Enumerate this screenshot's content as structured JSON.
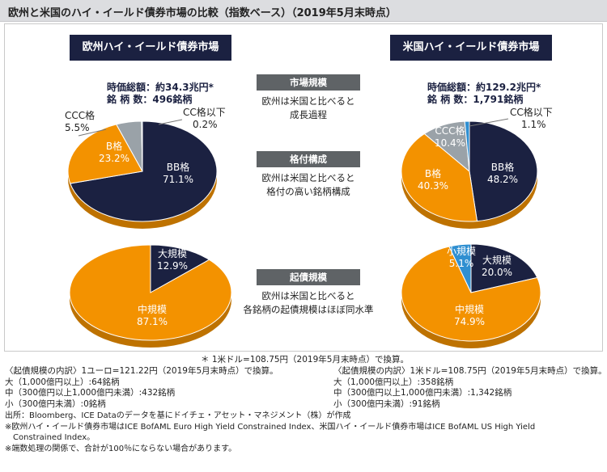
{
  "title": "欧州と米国のハイ・イールド債券市場の比較（指数ベース）（2019年5月末時点）",
  "europe": {
    "header": "欧州ハイ・イールド債券市場",
    "market_value": "時価総額：約34.3兆円*",
    "issue_count": "銘 柄 数：496銘柄"
  },
  "us": {
    "header": "米国ハイ・イールド債券市場",
    "market_value": "時価総額：約129.2兆円*",
    "issue_count": "銘 柄 数：1,791銘柄"
  },
  "middle": {
    "section1_label": "市場規模",
    "section1_line1": "欧州は米国と比べると",
    "section1_line2": "成長過程",
    "section2_label": "格付構成",
    "section2_line1": "欧州は米国と比べると",
    "section2_line2": "格付の高い銘柄構成",
    "section3_label": "起債規模",
    "section3_line1": "欧州は米国と比べると",
    "section3_line2": "各銘柄の起債規模はほぼ同水準"
  },
  "colors": {
    "navy": "#1b2141",
    "orange": "#f39200",
    "gray": "#9aa2a8",
    "blue": "#2f8fd1"
  },
  "chart_data": [
    {
      "type": "pie",
      "title": "欧州ハイ・イールド債券市場 格付構成",
      "slices": [
        {
          "name": "BB格",
          "value": 71.1,
          "label": "71.1%",
          "color": "#1b2141"
        },
        {
          "name": "B格",
          "value": 23.2,
          "label": "23.2%",
          "color": "#f39200"
        },
        {
          "name": "CCC格",
          "value": 5.5,
          "label": "5.5%",
          "color": "#9aa2a8"
        },
        {
          "name": "CC格以下",
          "value": 0.2,
          "label": "0.2%",
          "color": "#2f8fd1"
        }
      ]
    },
    {
      "type": "pie",
      "title": "米国ハイ・イールド債券市場 格付構成",
      "slices": [
        {
          "name": "BB格",
          "value": 48.2,
          "label": "48.2%",
          "color": "#1b2141"
        },
        {
          "name": "B格",
          "value": 40.3,
          "label": "40.3%",
          "color": "#f39200"
        },
        {
          "name": "CCC格",
          "value": 10.4,
          "label": "10.4%",
          "color": "#9aa2a8"
        },
        {
          "name": "CC格以下",
          "value": 1.1,
          "label": "1.1%",
          "color": "#2f8fd1"
        }
      ]
    },
    {
      "type": "pie",
      "title": "欧州ハイ・イールド債券市場 起債規模",
      "slices": [
        {
          "name": "大規模",
          "value": 12.9,
          "label": "12.9%",
          "color": "#1b2141"
        },
        {
          "name": "中規模",
          "value": 87.1,
          "label": "87.1%",
          "color": "#f39200"
        }
      ]
    },
    {
      "type": "pie",
      "title": "米国ハイ・イールド債券市場 起債規模",
      "slices": [
        {
          "name": "大規模",
          "value": 20.0,
          "label": "20.0%",
          "color": "#1b2141"
        },
        {
          "name": "中規模",
          "value": 74.9,
          "label": "74.9%",
          "color": "#f39200"
        },
        {
          "name": "小規模",
          "value": 5.1,
          "label": "5.1%",
          "color": "#2f8fd1"
        }
      ]
    }
  ],
  "notes": {
    "fx_note": "＊ 1米ドル=108.75円（2019年5月末時点）で換算。",
    "europe_breakdown_title": "〈起債規模の内訳〉1ユーロ=121.22円（2019年5月末時点）で換算。",
    "europe_large": "大（1,000億円以上）:64銘柄",
    "europe_medium": "中（300億円以上1,000億円未満）:432銘柄",
    "europe_small": "小（300億円未満）:0銘柄",
    "us_breakdown_title": "〈起債規模の内訳〉1米ドル=108.75円（2019年5月末時点）で換算。",
    "us_large": "大（1,000億円以上）:358銘柄",
    "us_medium": "中（300億円以上1,000億円未満）:1,342銘柄",
    "us_small": "小（300億円未満）:91銘柄",
    "source": "出所：Bloomberg、ICE Dataのデータを基にドイチェ・アセット・マネジメント（株）が作成",
    "index_line1": "※欧州ハイ・イールド債券市場はICE BofAML Euro High Yield Constrained Index、米国ハイ・イールド債券市場はICE BofAML US High Yield",
    "index_line2": "Constrained Index。",
    "rounding": "※端数処理の関係で、合計が100％にならない場合があります。"
  }
}
